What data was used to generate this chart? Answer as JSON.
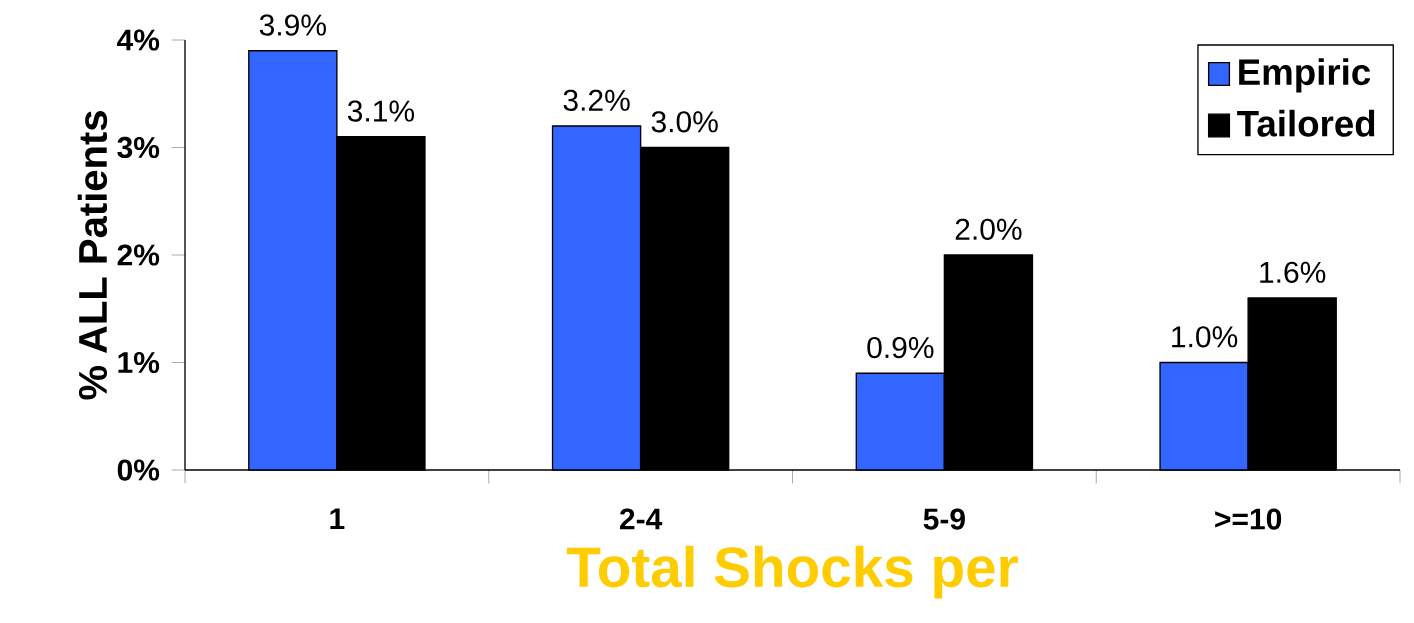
{
  "chart_data": {
    "type": "bar",
    "xlabel": "Total Shocks per",
    "ylabel": "% ALL Patients",
    "categories": [
      "1",
      "2-4",
      "5-9",
      ">=10"
    ],
    "series": [
      {
        "name": "Empiric",
        "color": "#3366ff",
        "values": [
          3.9,
          3.2,
          0.9,
          1.0
        ],
        "value_labels": [
          "3.9%",
          "3.2%",
          "0.9%",
          "1.0%"
        ]
      },
      {
        "name": "Tailored",
        "color": "#000000",
        "values": [
          3.1,
          3.0,
          2.0,
          1.6
        ],
        "value_labels": [
          "3.1%",
          "3.0%",
          "2.0%",
          "1.6%"
        ]
      }
    ],
    "ylim": [
      0,
      4
    ],
    "yticks": [
      {
        "value": 0,
        "label": "0%"
      },
      {
        "value": 1,
        "label": "1%"
      },
      {
        "value": 2,
        "label": "2%"
      },
      {
        "value": 3,
        "label": "3%"
      },
      {
        "value": 4,
        "label": "4%"
      }
    ],
    "legend": "top right"
  }
}
